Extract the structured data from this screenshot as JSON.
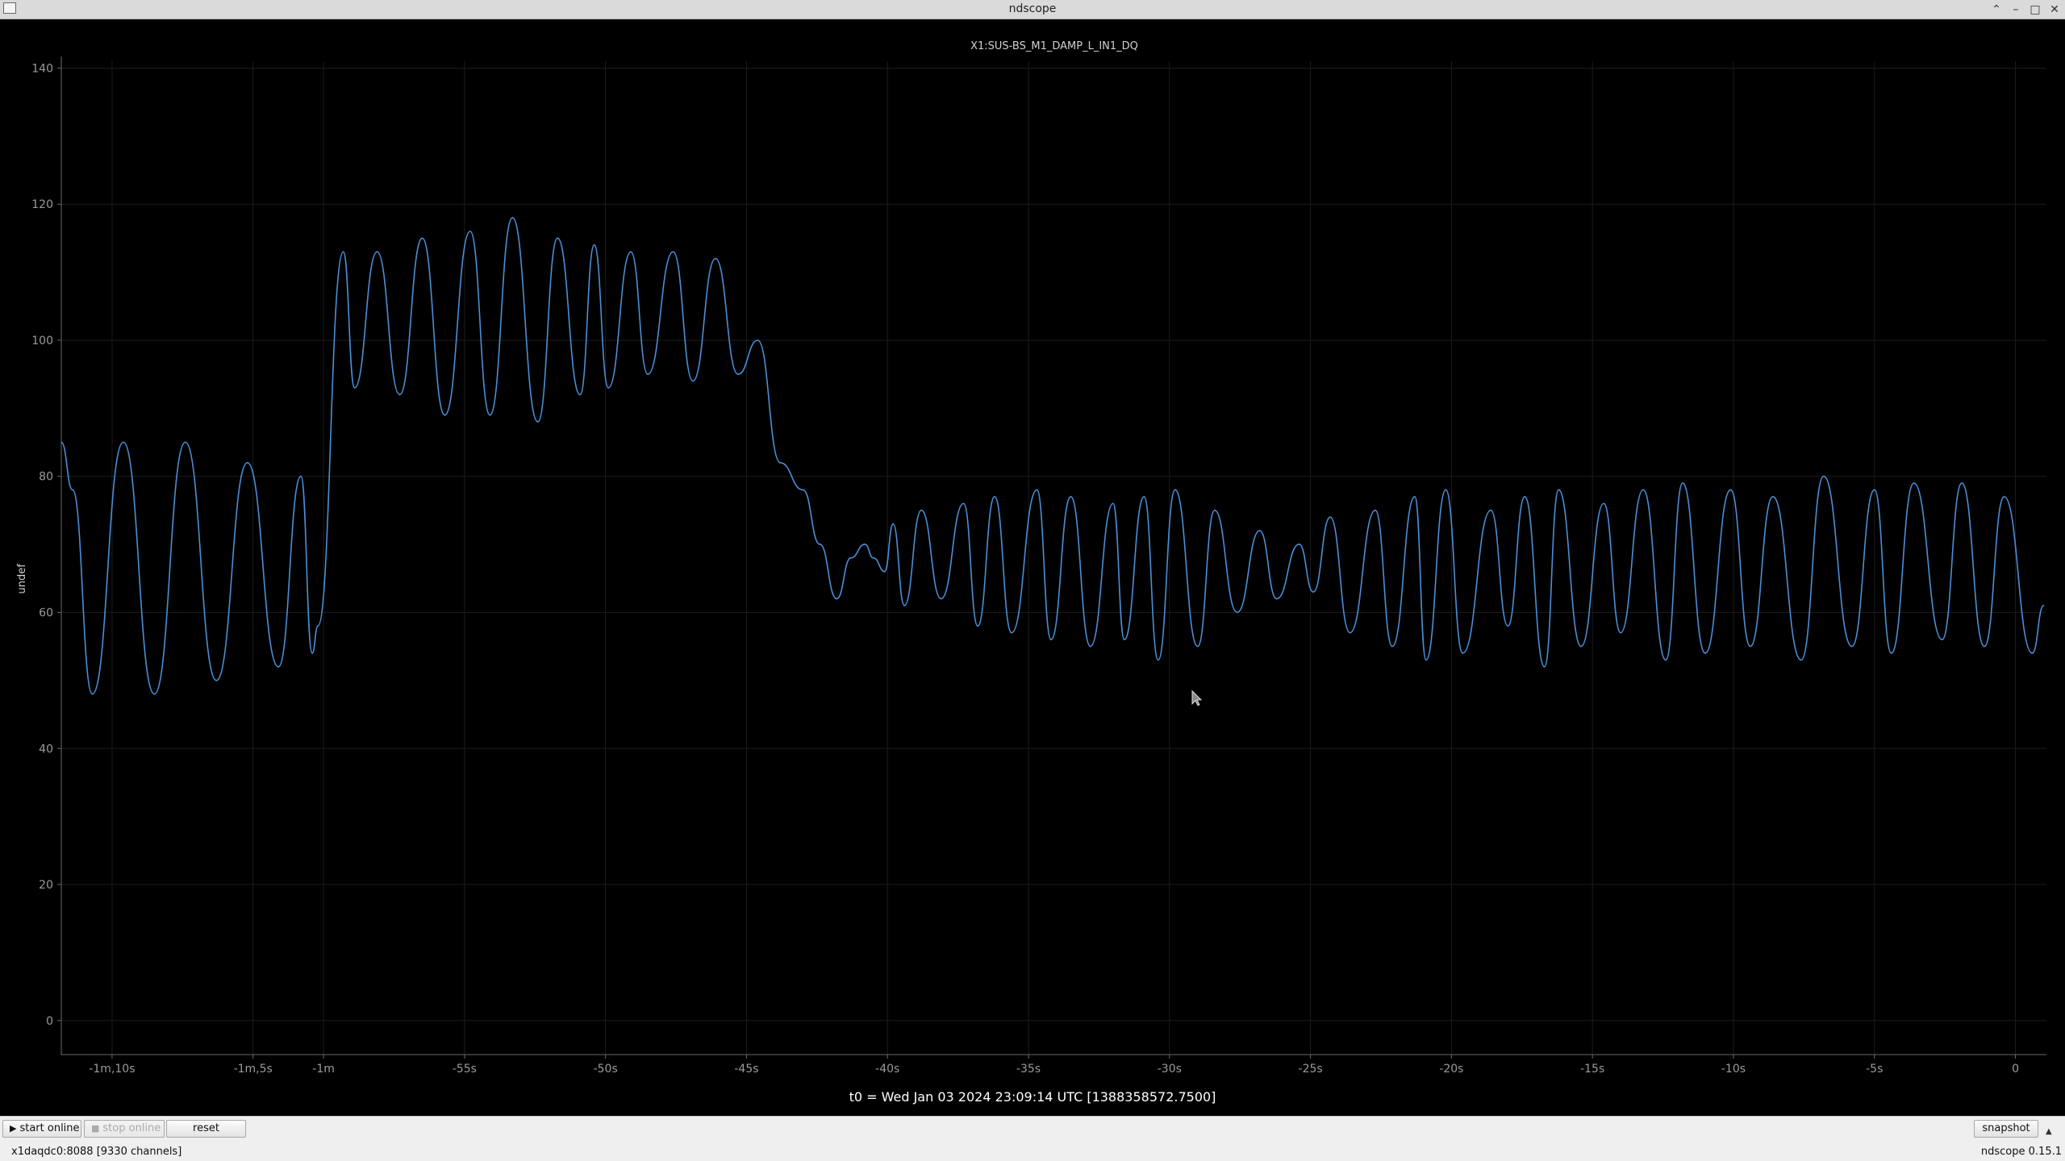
{
  "window": {
    "title": "ndscope"
  },
  "plot": {
    "channel_title": "X1:SUS-BS_M1_DAMP_L_IN1_DQ",
    "y_axis_label": "undef",
    "t0_label": "t0 = Wed Jan 03 2024 23:09:14 UTC [1388358572.7500]",
    "trace_color": "#4a8fd6"
  },
  "chart_data": {
    "type": "line",
    "title": "X1:SUS-BS_M1_DAMP_L_IN1_DQ",
    "xlabel": "",
    "ylabel": "undef",
    "xlim": [
      -69.3,
      1.1
    ],
    "ylim": [
      -5,
      141
    ],
    "x_ticks": [
      -67.5,
      -62.5,
      -60,
      -55,
      -50,
      -45,
      -40,
      -35,
      -30,
      -25,
      -20,
      -15,
      -10,
      -5,
      0
    ],
    "x_tick_labels": [
      "-1m,10s",
      "-1m,5s",
      "-1m",
      "-55s",
      "-50s",
      "-45s",
      "-40s",
      "-35s",
      "-30s",
      "-25s",
      "-20s",
      "-15s",
      "-10s",
      "-5s",
      "0"
    ],
    "y_ticks": [
      0,
      20,
      40,
      60,
      80,
      100,
      120,
      140
    ],
    "grid": true,
    "series": [
      {
        "x": [
          -69.3,
          -68.9,
          -68.2,
          -67.1,
          -66.0,
          -64.9,
          -63.8,
          -62.7,
          -61.6,
          -60.8,
          -60.4,
          -60.2,
          -59.3,
          -58.9,
          -58.1,
          -57.3,
          -56.5,
          -55.7,
          -54.8,
          -54.1,
          -53.3,
          -52.4,
          -51.7,
          -50.9,
          -50.4,
          -49.9,
          -49.1,
          -48.5,
          -47.6,
          -46.9,
          -46.1,
          -45.3,
          -44.6,
          -43.8,
          -43.0,
          -42.4,
          -41.8,
          -41.3,
          -40.8,
          -40.5,
          -40.1,
          -39.8,
          -39.4,
          -38.8,
          -38.1,
          -37.3,
          -36.8,
          -36.2,
          -35.6,
          -34.7,
          -34.2,
          -33.5,
          -32.8,
          -32.0,
          -31.6,
          -30.9,
          -30.4,
          -29.8,
          -29.0,
          -28.4,
          -27.6,
          -26.8,
          -26.2,
          -25.4,
          -24.9,
          -24.3,
          -23.6,
          -22.7,
          -22.1,
          -21.3,
          -20.9,
          -20.2,
          -19.6,
          -18.6,
          -18.0,
          -17.4,
          -16.7,
          -16.2,
          -15.4,
          -14.6,
          -14.0,
          -13.2,
          -12.4,
          -11.8,
          -11.0,
          -10.1,
          -9.4,
          -8.6,
          -7.6,
          -6.8,
          -5.8,
          -5.0,
          -4.4,
          -3.6,
          -2.6,
          -1.9,
          -1.1,
          -0.4,
          0.6,
          1.0
        ],
        "y": [
          85,
          78,
          48,
          85,
          48,
          85,
          50,
          82,
          52,
          80,
          54,
          58,
          113,
          93,
          113,
          92,
          115,
          89,
          116,
          89,
          118,
          88,
          115,
          92,
          114,
          93,
          113,
          95,
          113,
          94,
          112,
          95,
          100,
          82,
          78,
          70,
          62,
          68,
          70,
          68,
          66,
          73,
          61,
          75,
          62,
          76,
          58,
          77,
          57,
          78,
          56,
          77,
          55,
          76,
          56,
          77,
          53,
          78,
          55,
          75,
          60,
          72,
          62,
          70,
          63,
          74,
          57,
          75,
          55,
          77,
          53,
          78,
          54,
          75,
          58,
          77,
          52,
          78,
          55,
          76,
          57,
          78,
          53,
          79,
          54,
          78,
          55,
          77,
          53,
          80,
          55,
          78,
          54,
          79,
          56,
          79,
          55,
          77,
          54,
          61
        ]
      }
    ]
  },
  "toolbar": {
    "start_online": "start online",
    "stop_online": "stop online",
    "reset": "reset",
    "snapshot": "snapshot"
  },
  "status": {
    "server": "x1daqdc0:8088  [9330 channels]",
    "version": "ndscope 0.15.1"
  }
}
